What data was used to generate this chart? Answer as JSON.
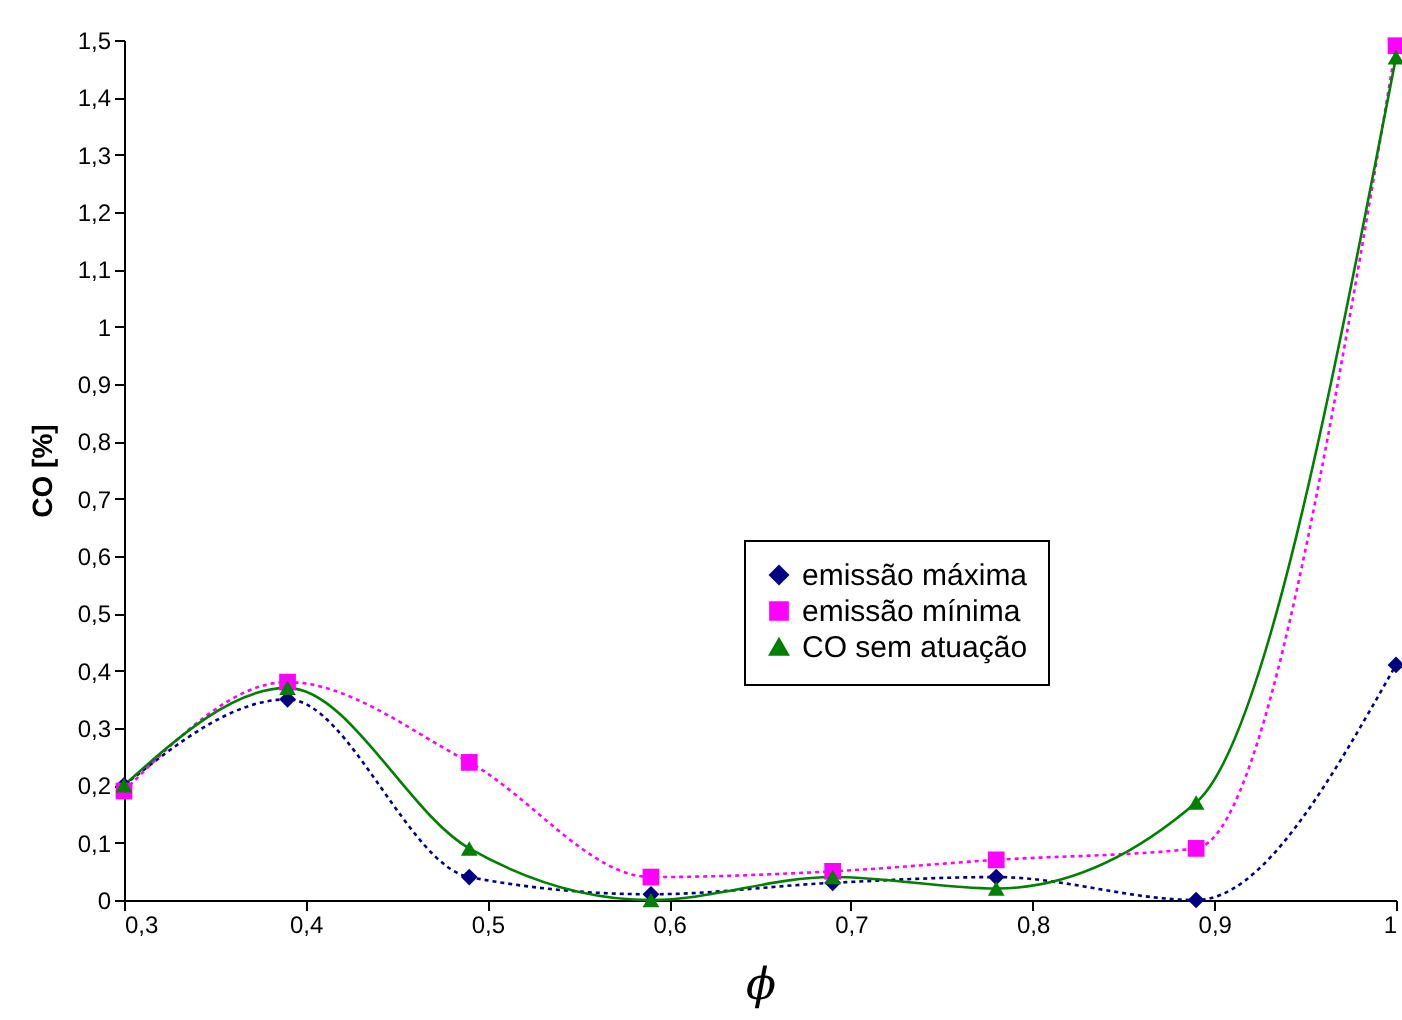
{
  "chart_data": {
    "type": "line",
    "xlabel": "ϕ",
    "ylabel": "CO [%]",
    "x": [
      0.3,
      0.39,
      0.49,
      0.59,
      0.69,
      0.78,
      0.89,
      1.0
    ],
    "series": [
      {
        "name": "emissão máxima",
        "color": "#000080",
        "marker": "diamond",
        "line_style": "dotted",
        "values": [
          0.2,
          0.35,
          0.04,
          0.01,
          0.03,
          0.04,
          0.0,
          0.41
        ]
      },
      {
        "name": "emissão mínima",
        "color": "#ff00ff",
        "marker": "square",
        "line_style": "dotted",
        "values": [
          0.19,
          0.38,
          0.24,
          0.04,
          0.05,
          0.07,
          0.09,
          1.49
        ]
      },
      {
        "name": "CO sem atuação",
        "color": "#008000",
        "marker": "triangle",
        "line_style": "solid",
        "values": [
          0.2,
          0.37,
          0.09,
          0.0,
          0.04,
          0.02,
          0.17,
          1.47
        ]
      }
    ],
    "xlim": [
      0.3,
      1.0
    ],
    "xticks": [
      {
        "value": 0.3,
        "label": "0,3"
      },
      {
        "value": 0.4,
        "label": "0,4"
      },
      {
        "value": 0.5,
        "label": "0,5"
      },
      {
        "value": 0.6,
        "label": "0,6"
      },
      {
        "value": 0.7,
        "label": "0,7"
      },
      {
        "value": 0.8,
        "label": "0,8"
      },
      {
        "value": 0.9,
        "label": "0,9"
      },
      1
    ],
    "ylim": [
      0,
      1.5
    ],
    "yticks": [
      0,
      {
        "value": 0.1,
        "label": "0,1"
      },
      {
        "value": 0.2,
        "label": "0,2"
      },
      {
        "value": 0.3,
        "label": "0,3"
      },
      {
        "value": 0.4,
        "label": "0,4"
      },
      {
        "value": 0.5,
        "label": "0,5"
      },
      {
        "value": 0.6,
        "label": "0,6"
      },
      {
        "value": 0.7,
        "label": "0,7"
      },
      {
        "value": 0.8,
        "label": "0,8"
      },
      {
        "value": 0.9,
        "label": "0,9"
      },
      1,
      {
        "value": 1.1,
        "label": "1,1"
      },
      {
        "value": 1.2,
        "label": "1,2"
      },
      {
        "value": 1.3,
        "label": "1,3"
      },
      {
        "value": 1.4,
        "label": "1,4"
      },
      {
        "value": 1.5,
        "label": "1,5"
      }
    ],
    "grid": false,
    "legend": "right"
  }
}
